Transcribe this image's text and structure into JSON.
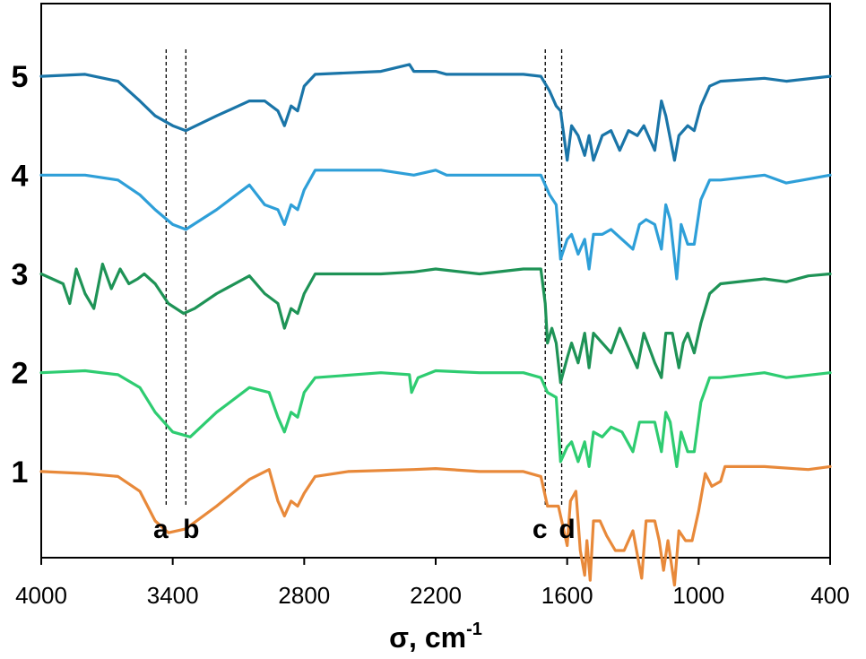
{
  "chart_data": {
    "type": "line",
    "title": "",
    "xlabel": "σ, cm",
    "xlabel_superscript": "-1",
    "ylabel": "",
    "x_reversed": true,
    "xlim": [
      4000,
      400
    ],
    "x_ticks": [
      "4000",
      "3400",
      "2800",
      "2200",
      "1600",
      "1000",
      "400"
    ],
    "x_tick_values": [
      4000,
      3400,
      2800,
      2200,
      1600,
      1000,
      400
    ],
    "ylim": [
      -0.6,
      4.5
    ],
    "grid": false,
    "legend": "none",
    "series_labels_inline": true,
    "markers": [
      {
        "label": "a",
        "x": 3430
      },
      {
        "label": "b",
        "x": 3340
      },
      {
        "label": "c",
        "x": 1700
      },
      {
        "label": "d",
        "x": 1625
      }
    ],
    "series": [
      {
        "label": "1",
        "offset": 0,
        "color": "#E8893A",
        "points": [
          [
            4000,
            0
          ],
          [
            3800,
            -0.02
          ],
          [
            3650,
            -0.05
          ],
          [
            3550,
            -0.2
          ],
          [
            3480,
            -0.5
          ],
          [
            3420,
            -0.62
          ],
          [
            3340,
            -0.58
          ],
          [
            3200,
            -0.35
          ],
          [
            3050,
            -0.08
          ],
          [
            2960,
            0.02
          ],
          [
            2920,
            -0.3
          ],
          [
            2890,
            -0.45
          ],
          [
            2860,
            -0.3
          ],
          [
            2830,
            -0.35
          ],
          [
            2800,
            -0.22
          ],
          [
            2750,
            -0.05
          ],
          [
            2600,
            0
          ],
          [
            2300,
            0.02
          ],
          [
            2200,
            0.03
          ],
          [
            2000,
            0
          ],
          [
            1800,
            0
          ],
          [
            1720,
            -0.05
          ],
          [
            1690,
            -0.35
          ],
          [
            1640,
            -0.35
          ],
          [
            1600,
            -0.75
          ],
          [
            1585,
            -0.3
          ],
          [
            1560,
            -0.2
          ],
          [
            1540,
            -0.8
          ],
          [
            1520,
            -1.05
          ],
          [
            1510,
            -0.7
          ],
          [
            1495,
            -1.1
          ],
          [
            1480,
            -0.5
          ],
          [
            1450,
            -0.5
          ],
          [
            1420,
            -0.65
          ],
          [
            1380,
            -0.8
          ],
          [
            1340,
            -0.8
          ],
          [
            1300,
            -0.6
          ],
          [
            1260,
            -1.08
          ],
          [
            1240,
            -0.5
          ],
          [
            1200,
            -0.5
          ],
          [
            1180,
            -0.7
          ],
          [
            1160,
            -1.0
          ],
          [
            1140,
            -0.7
          ],
          [
            1110,
            -1.15
          ],
          [
            1090,
            -0.6
          ],
          [
            1060,
            -0.7
          ],
          [
            1030,
            -0.7
          ],
          [
            1000,
            -0.4
          ],
          [
            970,
            -0.02
          ],
          [
            940,
            -0.15
          ],
          [
            900,
            -0.1
          ],
          [
            880,
            0.05
          ],
          [
            800,
            0.05
          ],
          [
            700,
            0.05
          ],
          [
            500,
            0.02
          ],
          [
            400,
            0.05
          ]
        ]
      },
      {
        "label": "2",
        "offset": 1,
        "color": "#2ECC71",
        "points": [
          [
            4000,
            0
          ],
          [
            3800,
            0.02
          ],
          [
            3650,
            -0.02
          ],
          [
            3550,
            -0.15
          ],
          [
            3480,
            -0.4
          ],
          [
            3400,
            -0.6
          ],
          [
            3320,
            -0.65
          ],
          [
            3200,
            -0.4
          ],
          [
            3050,
            -0.15
          ],
          [
            2960,
            -0.2
          ],
          [
            2920,
            -0.45
          ],
          [
            2890,
            -0.6
          ],
          [
            2860,
            -0.4
          ],
          [
            2830,
            -0.45
          ],
          [
            2800,
            -0.2
          ],
          [
            2750,
            -0.05
          ],
          [
            2450,
            0
          ],
          [
            2320,
            -0.02
          ],
          [
            2310,
            -0.2
          ],
          [
            2280,
            -0.05
          ],
          [
            2200,
            0.02
          ],
          [
            2000,
            0
          ],
          [
            1800,
            0
          ],
          [
            1720,
            -0.05
          ],
          [
            1690,
            -0.2
          ],
          [
            1650,
            -0.25
          ],
          [
            1630,
            -0.9
          ],
          [
            1600,
            -0.75
          ],
          [
            1580,
            -0.7
          ],
          [
            1550,
            -0.9
          ],
          [
            1520,
            -0.7
          ],
          [
            1500,
            -0.95
          ],
          [
            1480,
            -0.6
          ],
          [
            1440,
            -0.65
          ],
          [
            1400,
            -0.55
          ],
          [
            1350,
            -0.6
          ],
          [
            1300,
            -0.8
          ],
          [
            1270,
            -0.5
          ],
          [
            1240,
            -0.5
          ],
          [
            1200,
            -0.5
          ],
          [
            1170,
            -0.8
          ],
          [
            1150,
            -0.4
          ],
          [
            1130,
            -0.5
          ],
          [
            1100,
            -0.95
          ],
          [
            1080,
            -0.6
          ],
          [
            1050,
            -0.8
          ],
          [
            1020,
            -0.8
          ],
          [
            990,
            -0.3
          ],
          [
            950,
            -0.05
          ],
          [
            900,
            -0.05
          ],
          [
            700,
            0
          ],
          [
            600,
            -0.05
          ],
          [
            400,
            0
          ]
        ]
      },
      {
        "label": "3",
        "offset": 2,
        "color": "#1E9356",
        "points": [
          [
            4000,
            0
          ],
          [
            3900,
            -0.1
          ],
          [
            3870,
            -0.3
          ],
          [
            3840,
            0.05
          ],
          [
            3800,
            -0.2
          ],
          [
            3760,
            -0.35
          ],
          [
            3720,
            0.1
          ],
          [
            3680,
            -0.15
          ],
          [
            3640,
            0.05
          ],
          [
            3600,
            -0.1
          ],
          [
            3560,
            -0.05
          ],
          [
            3530,
            0
          ],
          [
            3480,
            -0.1
          ],
          [
            3420,
            -0.3
          ],
          [
            3350,
            -0.4
          ],
          [
            3300,
            -0.35
          ],
          [
            3200,
            -0.2
          ],
          [
            3050,
            -0.02
          ],
          [
            2980,
            -0.2
          ],
          [
            2920,
            -0.3
          ],
          [
            2890,
            -0.55
          ],
          [
            2860,
            -0.35
          ],
          [
            2830,
            -0.4
          ],
          [
            2800,
            -0.2
          ],
          [
            2750,
            0
          ],
          [
            2450,
            0
          ],
          [
            2300,
            0.02
          ],
          [
            2200,
            0.05
          ],
          [
            2000,
            0
          ],
          [
            1800,
            0.05
          ],
          [
            1720,
            0.05
          ],
          [
            1700,
            -0.3
          ],
          [
            1690,
            -0.7
          ],
          [
            1670,
            -0.55
          ],
          [
            1650,
            -0.7
          ],
          [
            1630,
            -1.1
          ],
          [
            1600,
            -0.85
          ],
          [
            1580,
            -0.7
          ],
          [
            1550,
            -0.9
          ],
          [
            1520,
            -0.6
          ],
          [
            1500,
            -0.95
          ],
          [
            1480,
            -0.6
          ],
          [
            1440,
            -0.7
          ],
          [
            1400,
            -0.8
          ],
          [
            1360,
            -0.55
          ],
          [
            1320,
            -0.75
          ],
          [
            1280,
            -0.95
          ],
          [
            1250,
            -0.6
          ],
          [
            1200,
            -0.9
          ],
          [
            1170,
            -1.05
          ],
          [
            1150,
            -0.6
          ],
          [
            1120,
            -0.6
          ],
          [
            1090,
            -0.95
          ],
          [
            1070,
            -0.7
          ],
          [
            1050,
            -0.6
          ],
          [
            1020,
            -0.8
          ],
          [
            990,
            -0.5
          ],
          [
            950,
            -0.2
          ],
          [
            900,
            -0.1
          ],
          [
            700,
            -0.05
          ],
          [
            600,
            -0.08
          ],
          [
            500,
            -0.02
          ],
          [
            400,
            0
          ]
        ]
      },
      {
        "label": "4",
        "offset": 3,
        "color": "#2E9FD8",
        "points": [
          [
            4000,
            0
          ],
          [
            3800,
            0
          ],
          [
            3650,
            -0.05
          ],
          [
            3550,
            -0.2
          ],
          [
            3480,
            -0.35
          ],
          [
            3400,
            -0.5
          ],
          [
            3340,
            -0.55
          ],
          [
            3200,
            -0.35
          ],
          [
            3050,
            -0.1
          ],
          [
            2980,
            -0.3
          ],
          [
            2920,
            -0.35
          ],
          [
            2890,
            -0.5
          ],
          [
            2860,
            -0.3
          ],
          [
            2830,
            -0.35
          ],
          [
            2800,
            -0.15
          ],
          [
            2750,
            0.05
          ],
          [
            2450,
            0.05
          ],
          [
            2300,
            0
          ],
          [
            2200,
            0.05
          ],
          [
            2150,
            0
          ],
          [
            2000,
            0
          ],
          [
            1800,
            0
          ],
          [
            1720,
            0
          ],
          [
            1680,
            -0.2
          ],
          [
            1650,
            -0.3
          ],
          [
            1630,
            -0.85
          ],
          [
            1600,
            -0.65
          ],
          [
            1580,
            -0.6
          ],
          [
            1550,
            -0.8
          ],
          [
            1520,
            -0.65
          ],
          [
            1500,
            -0.95
          ],
          [
            1480,
            -0.6
          ],
          [
            1440,
            -0.6
          ],
          [
            1400,
            -0.55
          ],
          [
            1350,
            -0.65
          ],
          [
            1300,
            -0.75
          ],
          [
            1270,
            -0.5
          ],
          [
            1240,
            -0.45
          ],
          [
            1200,
            -0.5
          ],
          [
            1170,
            -0.75
          ],
          [
            1150,
            -0.3
          ],
          [
            1130,
            -0.45
          ],
          [
            1100,
            -1.05
          ],
          [
            1080,
            -0.5
          ],
          [
            1050,
            -0.7
          ],
          [
            1020,
            -0.7
          ],
          [
            990,
            -0.25
          ],
          [
            950,
            -0.05
          ],
          [
            900,
            -0.05
          ],
          [
            700,
            0
          ],
          [
            600,
            -0.08
          ],
          [
            400,
            0
          ]
        ]
      },
      {
        "label": "5",
        "offset": 4,
        "color": "#1A75A8",
        "points": [
          [
            4000,
            0
          ],
          [
            3800,
            0.02
          ],
          [
            3650,
            -0.05
          ],
          [
            3550,
            -0.25
          ],
          [
            3480,
            -0.4
          ],
          [
            3400,
            -0.5
          ],
          [
            3340,
            -0.55
          ],
          [
            3200,
            -0.4
          ],
          [
            3050,
            -0.25
          ],
          [
            2980,
            -0.25
          ],
          [
            2920,
            -0.35
          ],
          [
            2890,
            -0.5
          ],
          [
            2860,
            -0.3
          ],
          [
            2830,
            -0.35
          ],
          [
            2800,
            -0.1
          ],
          [
            2750,
            0.02
          ],
          [
            2450,
            0.05
          ],
          [
            2320,
            0.12
          ],
          [
            2300,
            0.05
          ],
          [
            2200,
            0.05
          ],
          [
            2150,
            0.02
          ],
          [
            2000,
            0.02
          ],
          [
            1800,
            0.02
          ],
          [
            1720,
            0
          ],
          [
            1680,
            -0.15
          ],
          [
            1650,
            -0.3
          ],
          [
            1630,
            -0.35
          ],
          [
            1600,
            -0.85
          ],
          [
            1580,
            -0.5
          ],
          [
            1550,
            -0.6
          ],
          [
            1520,
            -0.8
          ],
          [
            1500,
            -0.6
          ],
          [
            1480,
            -0.85
          ],
          [
            1440,
            -0.6
          ],
          [
            1400,
            -0.55
          ],
          [
            1360,
            -0.75
          ],
          [
            1320,
            -0.55
          ],
          [
            1280,
            -0.6
          ],
          [
            1250,
            -0.5
          ],
          [
            1200,
            -0.75
          ],
          [
            1170,
            -0.25
          ],
          [
            1150,
            -0.4
          ],
          [
            1110,
            -0.85
          ],
          [
            1090,
            -0.6
          ],
          [
            1050,
            -0.5
          ],
          [
            1020,
            -0.55
          ],
          [
            990,
            -0.3
          ],
          [
            950,
            -0.1
          ],
          [
            900,
            -0.05
          ],
          [
            700,
            -0.02
          ],
          [
            600,
            -0.05
          ],
          [
            400,
            0
          ]
        ]
      }
    ]
  }
}
